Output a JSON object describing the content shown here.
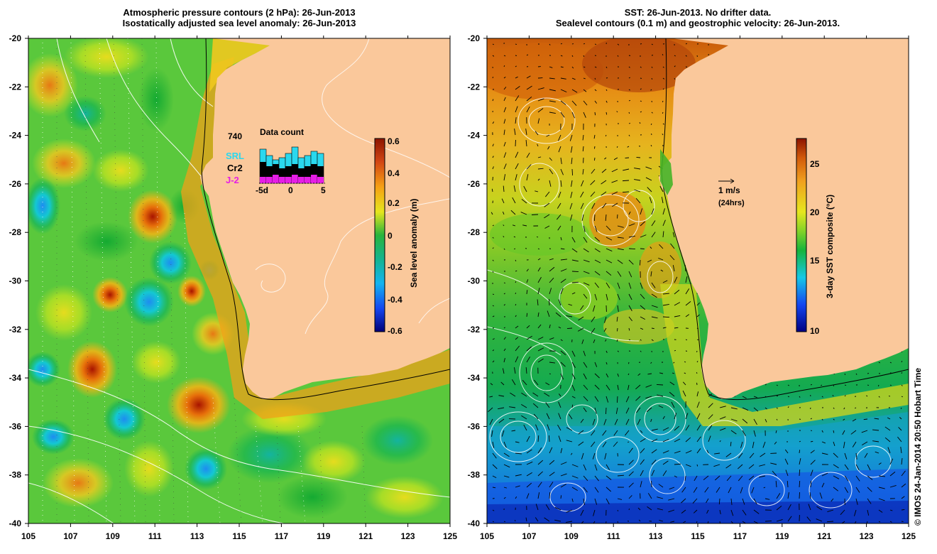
{
  "left_panel": {
    "title_line1": "Atmospheric pressure contours (2 hPa): 26-Jun-2013",
    "title_line2": "Isostatically adjusted sea level anomaly: 26-Jun-2013",
    "colorbar": {
      "label": "Sea level anomaly (m)",
      "ticks": [
        "0.6",
        "0.4",
        "0.2",
        "0",
        "-0.2",
        "-0.4",
        "-0.6"
      ]
    },
    "data_count": {
      "title": "Data count",
      "max_label": "740",
      "satellites": [
        {
          "name": "SRL",
          "color": "#2ad8ee"
        },
        {
          "name": "Cr2",
          "color": "#000000"
        },
        {
          "name": "J-2",
          "color": "#e61ee6"
        }
      ],
      "x_ticks": [
        "-5d",
        "0",
        "5"
      ],
      "bars_cyan": [
        0.8,
        0.65,
        0.55,
        0.6,
        0.7,
        0.85,
        0.6,
        0.65,
        0.75,
        0.7
      ],
      "bars_black": [
        0.5,
        0.4,
        0.45,
        0.35,
        0.4,
        0.45,
        0.35,
        0.4,
        0.45,
        0.4
      ],
      "bars_magenta": [
        0.15,
        0.15,
        0.2,
        0.15,
        0.15,
        0.2,
        0.15,
        0.15,
        0.2,
        0.15
      ]
    }
  },
  "right_panel": {
    "title_line1": "SST: 26-Jun-2013. No drifter data.",
    "title_line2": "Sealevel contours (0.1 m) and geostrophic velocity: 26-Jun-2013.",
    "colorbar": {
      "label": "3-day SST composite (°C)",
      "ticks": [
        "25",
        "20",
        "15",
        "10"
      ]
    },
    "velocity_scale": {
      "label": "1 m/s",
      "sublabel": "(24hrs)"
    }
  },
  "axes": {
    "x_ticks": [
      "105",
      "107",
      "109",
      "111",
      "113",
      "115",
      "117",
      "119",
      "121",
      "123",
      "125"
    ],
    "y_ticks": [
      "-20",
      "-22",
      "-24",
      "-26",
      "-28",
      "-30",
      "-32",
      "-34",
      "-36",
      "-38",
      "-40"
    ]
  },
  "credit": "© IMOS 24-Jan-2014 20:50 Hobart Time",
  "colors": {
    "land": "#fac89b",
    "sla_palette": [
      "#00007a",
      "#0050ff",
      "#00c8ff",
      "#00b43c",
      "#7ad21e",
      "#e6e61e",
      "#f5aa14",
      "#e66e0a",
      "#aa1400"
    ],
    "sst_palette": [
      "#00008c",
      "#0040ff",
      "#00b4ff",
      "#00b43c",
      "#9bd21e",
      "#e6d21e",
      "#e69614",
      "#c85a0a",
      "#8c1400"
    ]
  }
}
